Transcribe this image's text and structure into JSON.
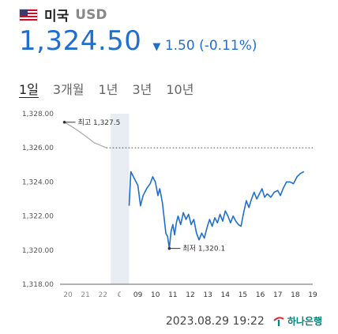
{
  "header": {
    "country": "미국",
    "currency": "USD"
  },
  "quote": {
    "price": "1,324.50",
    "arrow": "▼",
    "change": "1.50",
    "change_pct": "(-0.11%)"
  },
  "tabs": [
    {
      "label": "1일",
      "active": true
    },
    {
      "label": "3개월",
      "active": false
    },
    {
      "label": "1년",
      "active": false
    },
    {
      "label": "3년",
      "active": false
    },
    {
      "label": "10년",
      "active": false
    }
  ],
  "footer": {
    "timestamp": "2023.08.29 19:22",
    "source": "하나은행"
  },
  "colors": {
    "line": "#1f6fd0",
    "fill": "#dceefa",
    "shade": "#e8ecf3"
  },
  "chart_data": {
    "type": "line",
    "ylim": [
      1318,
      1328
    ],
    "y_ticks": [
      "1,318.00",
      "1,320.00",
      "1,322.00",
      "1,324.00",
      "1,326.00",
      "1,328.00"
    ],
    "x_ticks": [
      "20",
      "21",
      "22",
      "☾",
      "09",
      "10",
      "11",
      "12",
      "13",
      "14",
      "15",
      "16",
      "17",
      "18",
      "19"
    ],
    "previous_close": 1326.0,
    "high_label": "최고 1,327.5",
    "low_label": "최저 1,320.1",
    "high_value": 1327.5,
    "low_value": 1320.1,
    "series": [
      {
        "values": [
          [
            -0.2,
            1327.5
          ],
          [
            0.3,
            1327.2
          ],
          [
            1.0,
            1326.7
          ],
          [
            1.5,
            1326.3
          ],
          [
            2.2,
            1326.0
          ],
          [
            3.5,
            1322.6
          ],
          [
            3.6,
            1324.6
          ],
          [
            3.8,
            1324.2
          ],
          [
            4.0,
            1323.8
          ],
          [
            4.15,
            1322.6
          ],
          [
            4.3,
            1323.2
          ],
          [
            4.5,
            1323.6
          ],
          [
            4.7,
            1323.9
          ],
          [
            4.85,
            1324.3
          ],
          [
            5.0,
            1324.0
          ],
          [
            5.15,
            1323.2
          ],
          [
            5.25,
            1323.6
          ],
          [
            5.4,
            1322.8
          ],
          [
            5.5,
            1321.9
          ],
          [
            5.6,
            1321.0
          ],
          [
            5.7,
            1320.8
          ],
          [
            5.8,
            1320.1
          ],
          [
            5.9,
            1321.1
          ],
          [
            6.0,
            1321.5
          ],
          [
            6.1,
            1320.9
          ],
          [
            6.2,
            1321.6
          ],
          [
            6.3,
            1322.0
          ],
          [
            6.45,
            1321.5
          ],
          [
            6.6,
            1322.2
          ],
          [
            6.75,
            1321.8
          ],
          [
            6.9,
            1322.1
          ],
          [
            7.05,
            1321.5
          ],
          [
            7.2,
            1321.8
          ],
          [
            7.35,
            1321.0
          ],
          [
            7.5,
            1320.6
          ],
          [
            7.65,
            1321.0
          ],
          [
            7.8,
            1320.7
          ],
          [
            7.95,
            1321.3
          ],
          [
            8.1,
            1321.8
          ],
          [
            8.25,
            1321.4
          ],
          [
            8.4,
            1321.9
          ],
          [
            8.55,
            1321.6
          ],
          [
            8.7,
            1322.1
          ],
          [
            8.85,
            1321.7
          ],
          [
            9.0,
            1322.3
          ],
          [
            9.15,
            1322.0
          ],
          [
            9.3,
            1321.6
          ],
          [
            9.45,
            1322.0
          ],
          [
            9.6,
            1321.7
          ],
          [
            9.75,
            1321.5
          ],
          [
            9.9,
            1321.4
          ],
          [
            10.05,
            1322.2
          ],
          [
            10.2,
            1322.9
          ],
          [
            10.35,
            1322.5
          ],
          [
            10.5,
            1323.0
          ],
          [
            10.65,
            1323.4
          ],
          [
            10.8,
            1323.0
          ],
          [
            10.95,
            1323.3
          ],
          [
            11.1,
            1323.6
          ],
          [
            11.25,
            1323.1
          ],
          [
            11.4,
            1323.3
          ],
          [
            11.6,
            1323.1
          ],
          [
            11.8,
            1323.4
          ],
          [
            12.0,
            1323.5
          ],
          [
            12.15,
            1323.2
          ],
          [
            12.3,
            1323.6
          ],
          [
            12.5,
            1324.0
          ],
          [
            12.7,
            1324.0
          ],
          [
            12.9,
            1323.9
          ],
          [
            13.1,
            1324.3
          ],
          [
            13.3,
            1324.5
          ],
          [
            13.5,
            1324.6
          ]
        ]
      }
    ]
  }
}
